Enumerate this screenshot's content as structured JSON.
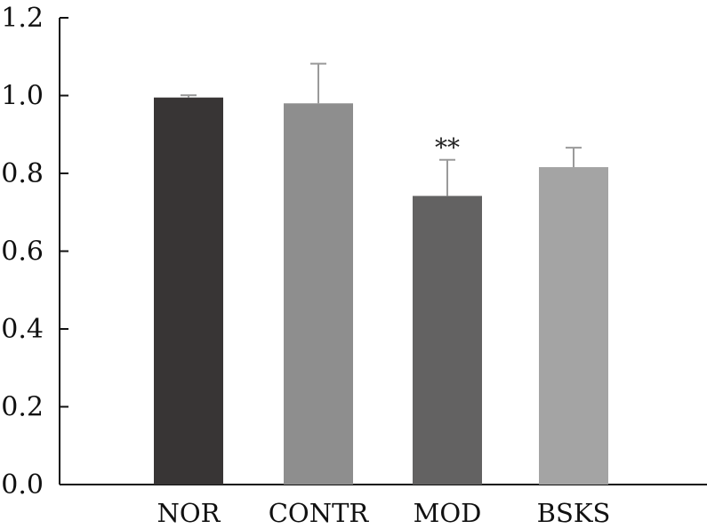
{
  "chart_data": {
    "type": "bar",
    "categories": [
      "NOR",
      "CONTR",
      "MOD",
      "BSKS"
    ],
    "values": [
      0.995,
      0.98,
      0.742,
      0.816
    ],
    "errors": [
      0.006,
      0.102,
      0.093,
      0.05
    ],
    "colors": [
      "#383535",
      "#8e8e8e",
      "#636262",
      "#a4a4a4"
    ],
    "errorbar_color": "#9a9a9a",
    "annotations": [
      {
        "category": "MOD",
        "text": "**"
      }
    ],
    "ylim": [
      0,
      1.2
    ],
    "yticks": [
      "0.0",
      "0.2",
      "0.4",
      "0.6",
      "0.8",
      "1.0",
      "1.2"
    ],
    "title": "",
    "xlabel": "",
    "ylabel": "",
    "grid": false,
    "legend": "none"
  }
}
